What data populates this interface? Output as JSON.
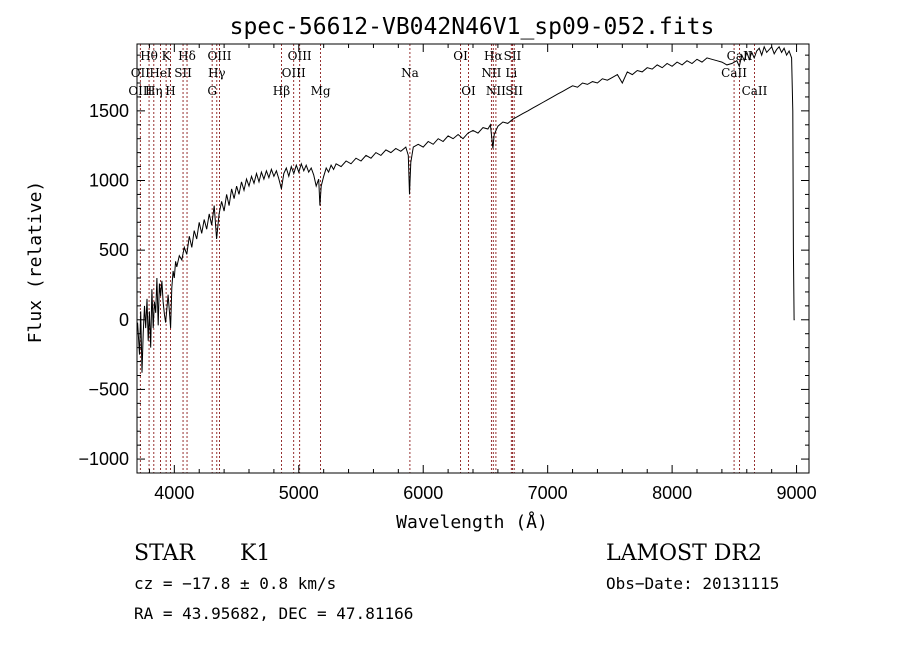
{
  "chart_data": {
    "type": "line",
    "title": "spec-56612-VB042N46V1_sp09-052.fits",
    "xlabel": "Wavelength (Å)",
    "ylabel": "Flux (relative)",
    "xlim": [
      3700,
      9100
    ],
    "ylim": [
      -1100,
      1980
    ],
    "xticks": [
      4000,
      5000,
      6000,
      7000,
      8000,
      9000
    ],
    "yticks": [
      -1000,
      -500,
      0,
      500,
      1000,
      1500
    ],
    "grid": false,
    "legend": "none",
    "series": [
      {
        "color": "#000000",
        "points": [
          [
            3705,
            -20
          ],
          [
            3720,
            -250
          ],
          [
            3730,
            60
          ],
          [
            3740,
            -380
          ],
          [
            3750,
            -100
          ],
          [
            3760,
            100
          ],
          [
            3770,
            -60
          ],
          [
            3780,
            150
          ],
          [
            3790,
            -150
          ],
          [
            3800,
            60
          ],
          [
            3810,
            -200
          ],
          [
            3820,
            220
          ],
          [
            3830,
            -60
          ],
          [
            3840,
            130
          ],
          [
            3850,
            50
          ],
          [
            3860,
            300
          ],
          [
            3870,
            -40
          ],
          [
            3880,
            260
          ],
          [
            3890,
            170
          ],
          [
            3900,
            280
          ],
          [
            3910,
            130
          ],
          [
            3920,
            40
          ],
          [
            3930,
            -20
          ],
          [
            3940,
            80
          ],
          [
            3950,
            180
          ],
          [
            3960,
            60
          ],
          [
            3970,
            -60
          ],
          [
            3980,
            230
          ],
          [
            3990,
            350
          ],
          [
            4000,
            300
          ],
          [
            4010,
            420
          ],
          [
            4020,
            380
          ],
          [
            4040,
            460
          ],
          [
            4060,
            430
          ],
          [
            4080,
            520
          ],
          [
            4100,
            470
          ],
          [
            4120,
            600
          ],
          [
            4140,
            520
          ],
          [
            4160,
            640
          ],
          [
            4180,
            580
          ],
          [
            4200,
            700
          ],
          [
            4220,
            620
          ],
          [
            4240,
            720
          ],
          [
            4260,
            650
          ],
          [
            4280,
            760
          ],
          [
            4300,
            680
          ],
          [
            4320,
            820
          ],
          [
            4340,
            580
          ],
          [
            4360,
            760
          ],
          [
            4380,
            850
          ],
          [
            4400,
            780
          ],
          [
            4420,
            900
          ],
          [
            4440,
            820
          ],
          [
            4460,
            940
          ],
          [
            4480,
            870
          ],
          [
            4500,
            960
          ],
          [
            4520,
            900
          ],
          [
            4540,
            990
          ],
          [
            4560,
            930
          ],
          [
            4580,
            1010
          ],
          [
            4600,
            960
          ],
          [
            4620,
            1030
          ],
          [
            4640,
            980
          ],
          [
            4660,
            1050
          ],
          [
            4680,
            990
          ],
          [
            4700,
            1060
          ],
          [
            4720,
            1010
          ],
          [
            4740,
            1070
          ],
          [
            4760,
            1020
          ],
          [
            4780,
            1080
          ],
          [
            4800,
            1030
          ],
          [
            4820,
            1070
          ],
          [
            4840,
            1010
          ],
          [
            4860,
            940
          ],
          [
            4880,
            1050
          ],
          [
            4900,
            1090
          ],
          [
            4920,
            1030
          ],
          [
            4940,
            1100
          ],
          [
            4960,
            1050
          ],
          [
            4980,
            1110
          ],
          [
            5000,
            1060
          ],
          [
            5020,
            1120
          ],
          [
            5040,
            1070
          ],
          [
            5060,
            1110
          ],
          [
            5080,
            1060
          ],
          [
            5100,
            1090
          ],
          [
            5120,
            1040
          ],
          [
            5140,
            960
          ],
          [
            5160,
            1010
          ],
          [
            5170,
            820
          ],
          [
            5180,
            960
          ],
          [
            5200,
            1030
          ],
          [
            5220,
            1090
          ],
          [
            5240,
            1060
          ],
          [
            5260,
            1110
          ],
          [
            5280,
            1080
          ],
          [
            5300,
            1120
          ],
          [
            5340,
            1100
          ],
          [
            5380,
            1140
          ],
          [
            5420,
            1120
          ],
          [
            5460,
            1160
          ],
          [
            5500,
            1140
          ],
          [
            5540,
            1180
          ],
          [
            5580,
            1160
          ],
          [
            5620,
            1200
          ],
          [
            5660,
            1180
          ],
          [
            5700,
            1220
          ],
          [
            5740,
            1200
          ],
          [
            5780,
            1230
          ],
          [
            5820,
            1210
          ],
          [
            5860,
            1240
          ],
          [
            5880,
            1180
          ],
          [
            5890,
            900
          ],
          [
            5900,
            1130
          ],
          [
            5920,
            1240
          ],
          [
            5960,
            1260
          ],
          [
            6000,
            1240
          ],
          [
            6040,
            1280
          ],
          [
            6080,
            1260
          ],
          [
            6120,
            1300
          ],
          [
            6160,
            1280
          ],
          [
            6200,
            1320
          ],
          [
            6240,
            1300
          ],
          [
            6280,
            1330
          ],
          [
            6320,
            1300
          ],
          [
            6360,
            1340
          ],
          [
            6400,
            1360
          ],
          [
            6440,
            1340
          ],
          [
            6480,
            1380
          ],
          [
            6520,
            1370
          ],
          [
            6540,
            1400
          ],
          [
            6560,
            1230
          ],
          [
            6570,
            1330
          ],
          [
            6600,
            1390
          ],
          [
            6640,
            1420
          ],
          [
            6680,
            1410
          ],
          [
            6720,
            1440
          ],
          [
            6760,
            1460
          ],
          [
            6800,
            1480
          ],
          [
            6840,
            1500
          ],
          [
            6880,
            1520
          ],
          [
            6920,
            1540
          ],
          [
            6960,
            1560
          ],
          [
            7000,
            1580
          ],
          [
            7040,
            1600
          ],
          [
            7080,
            1620
          ],
          [
            7120,
            1640
          ],
          [
            7160,
            1660
          ],
          [
            7200,
            1680
          ],
          [
            7240,
            1670
          ],
          [
            7280,
            1700
          ],
          [
            7320,
            1690
          ],
          [
            7360,
            1710
          ],
          [
            7400,
            1700
          ],
          [
            7440,
            1730
          ],
          [
            7480,
            1720
          ],
          [
            7520,
            1740
          ],
          [
            7560,
            1760
          ],
          [
            7600,
            1700
          ],
          [
            7640,
            1780
          ],
          [
            7680,
            1760
          ],
          [
            7720,
            1790
          ],
          [
            7760,
            1780
          ],
          [
            7800,
            1810
          ],
          [
            7840,
            1800
          ],
          [
            7880,
            1830
          ],
          [
            7920,
            1810
          ],
          [
            7960,
            1840
          ],
          [
            8000,
            1820
          ],
          [
            8040,
            1850
          ],
          [
            8080,
            1830
          ],
          [
            8120,
            1860
          ],
          [
            8160,
            1840
          ],
          [
            8200,
            1870
          ],
          [
            8240,
            1850
          ],
          [
            8280,
            1880
          ],
          [
            8320,
            1870
          ],
          [
            8360,
            1860
          ],
          [
            8400,
            1850
          ],
          [
            8440,
            1830
          ],
          [
            8480,
            1840
          ],
          [
            8520,
            1860
          ],
          [
            8540,
            1820
          ],
          [
            8560,
            1900
          ],
          [
            8580,
            1860
          ],
          [
            8600,
            1920
          ],
          [
            8620,
            1870
          ],
          [
            8640,
            1920
          ],
          [
            8660,
            1880
          ],
          [
            8680,
            1930
          ],
          [
            8700,
            1950
          ],
          [
            8720,
            1900
          ],
          [
            8740,
            1960
          ],
          [
            8760,
            1920
          ],
          [
            8780,
            1940
          ],
          [
            8800,
            1960
          ],
          [
            8820,
            1910
          ],
          [
            8840,
            1940
          ],
          [
            8860,
            1960
          ],
          [
            8880,
            1920
          ],
          [
            8900,
            1950
          ],
          [
            8920,
            1900
          ],
          [
            8940,
            1930
          ],
          [
            8960,
            1880
          ],
          [
            8970,
            1500
          ],
          [
            8975,
            500
          ],
          [
            8980,
            0
          ],
          [
            8985,
            0
          ]
        ]
      }
    ],
    "lines_top": [
      {
        "label": "Hθ",
        "x": 3797
      },
      {
        "label": "K",
        "x": 3934
      },
      {
        "label": "Hδ",
        "x": 4102
      },
      {
        "label": "OIII",
        "x": 4363
      },
      {
        "label": "OIII",
        "x": 5007
      },
      {
        "label": "OI",
        "x": 6300
      },
      {
        "label": "Hα",
        "x": 6563
      },
      {
        "label": "SII",
        "x": 6717
      },
      {
        "label": "CaII",
        "x": 8542
      }
    ],
    "lines_mid": [
      {
        "label": "OII",
        "x": 3727
      },
      {
        "label": "HeI",
        "x": 3889
      },
      {
        "label": "SII",
        "x": 4070
      },
      {
        "label": "Hγ",
        "x": 4341
      },
      {
        "label": "OIII",
        "x": 4959
      },
      {
        "label": "Na",
        "x": 5893
      },
      {
        "label": "NII",
        "x": 6548
      },
      {
        "label": "Li",
        "x": 6708
      },
      {
        "label": "CaII",
        "x": 8498
      }
    ],
    "lines_bot": [
      {
        "label": "OIII",
        "x": 3727
      },
      {
        "label": "Hη",
        "x": 3835
      },
      {
        "label": "H",
        "x": 3969
      },
      {
        "label": "G",
        "x": 4304
      },
      {
        "label": "Hβ",
        "x": 4861
      },
      {
        "label": "Mg",
        "x": 5175
      },
      {
        "label": "OI",
        "x": 6364
      },
      {
        "label": "NII",
        "x": 6584
      },
      {
        "label": "SII",
        "x": 6731
      },
      {
        "label": "CaII",
        "x": 8662
      }
    ]
  },
  "info": {
    "class": "STAR",
    "subclass": "K1",
    "survey": "LAMOST DR2",
    "cz": "cz = −17.8 ± 0.8 km/s",
    "obs_date": "Obs−Date: 20131115",
    "radec": "RA =  43.95682, DEC =  47.81166"
  }
}
